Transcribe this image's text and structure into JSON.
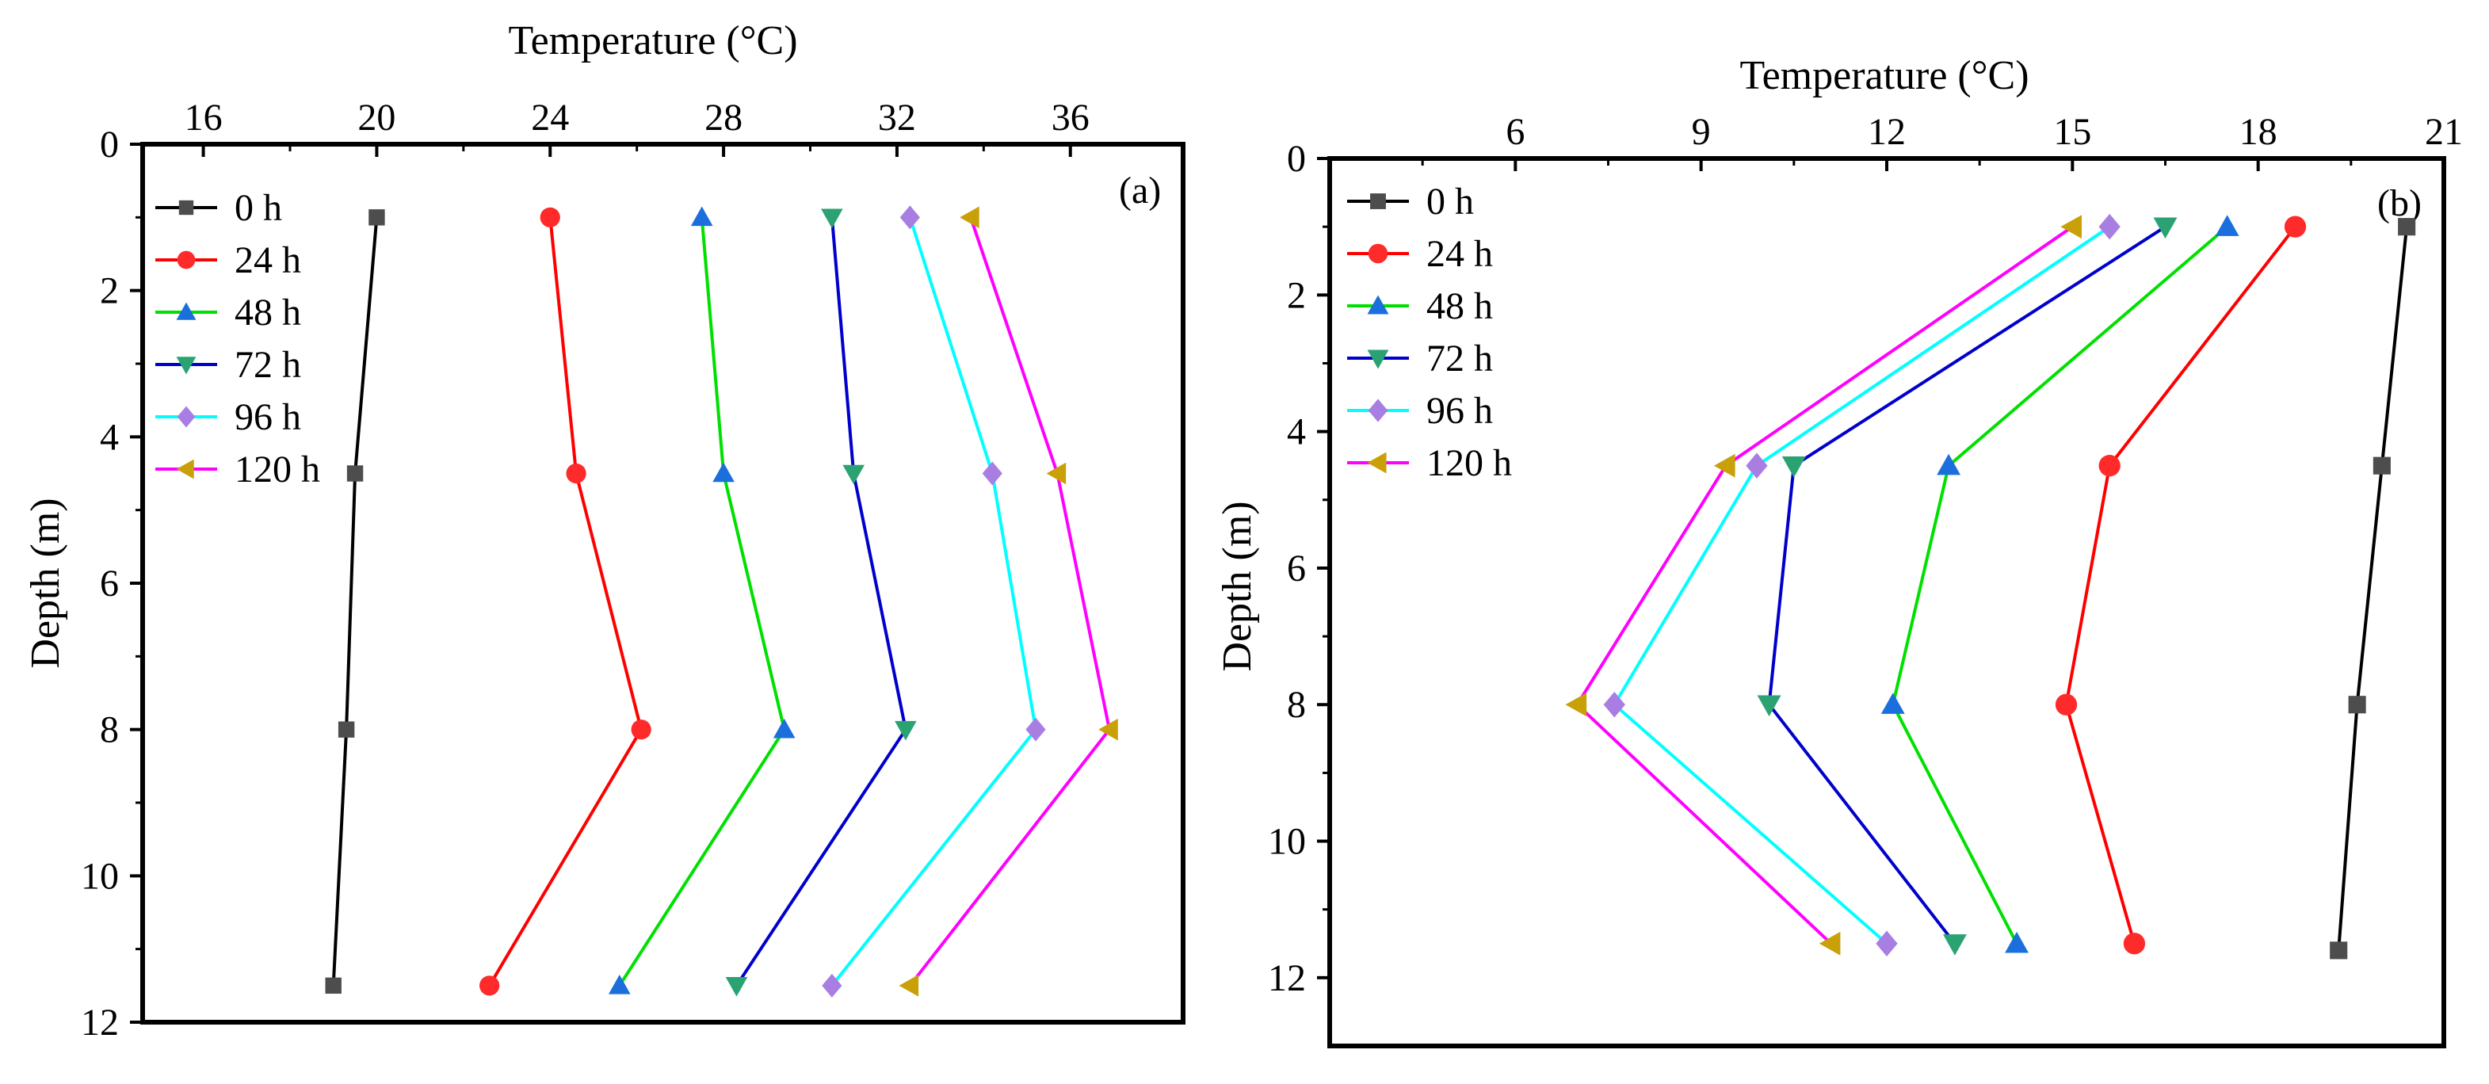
{
  "chart_data": [
    {
      "type": "line",
      "panel_label": "(a)",
      "xlabel": "Temperature (°C)",
      "ylabel": "Depth (m)",
      "xlim": [
        14.6,
        38.6
      ],
      "ylim": [
        12,
        0
      ],
      "x_ticks": [
        16,
        20,
        24,
        28,
        32,
        36
      ],
      "x_tick_labels": [
        "16",
        "20",
        "24",
        "28",
        "32",
        "36"
      ],
      "y_ticks": [
        0,
        2,
        4,
        6,
        8,
        10,
        12
      ],
      "y_tick_labels": [
        "0",
        "2",
        "4",
        "6",
        "8",
        "10",
        "12"
      ],
      "legend_position": "top-left",
      "series": [
        {
          "name": "0 h",
          "color": "#4d4d4d",
          "marker": "square",
          "points": [
            {
              "x": 20.0,
              "y": 1.0
            },
            {
              "x": 19.5,
              "y": 4.5
            },
            {
              "x": 19.3,
              "y": 8.0
            },
            {
              "x": 19.0,
              "y": 11.5
            }
          ]
        },
        {
          "name": "24 h",
          "color": "#ff2a2a",
          "marker": "circle",
          "points": [
            {
              "x": 24.0,
              "y": 1.0
            },
            {
              "x": 24.6,
              "y": 4.5
            },
            {
              "x": 26.1,
              "y": 8.0
            },
            {
              "x": 22.6,
              "y": 11.5
            }
          ]
        },
        {
          "name": "48 h",
          "color": "#1a6fdc",
          "marker": "triangle-up",
          "points": [
            {
              "x": 27.5,
              "y": 1.0
            },
            {
              "x": 28.0,
              "y": 4.5
            },
            {
              "x": 29.4,
              "y": 8.0
            },
            {
              "x": 25.6,
              "y": 11.5
            }
          ]
        },
        {
          "name": "72 h",
          "color": "#2aa272",
          "marker": "triangle-down",
          "points": [
            {
              "x": 30.5,
              "y": 1.0
            },
            {
              "x": 31.0,
              "y": 4.5
            },
            {
              "x": 32.2,
              "y": 8.0
            },
            {
              "x": 28.3,
              "y": 11.5
            }
          ]
        },
        {
          "name": "96 h",
          "color": "#a97ee3",
          "marker": "diamond",
          "points": [
            {
              "x": 32.3,
              "y": 1.0
            },
            {
              "x": 34.2,
              "y": 4.5
            },
            {
              "x": 35.2,
              "y": 8.0
            },
            {
              "x": 30.5,
              "y": 11.5
            }
          ]
        },
        {
          "name": "120 h",
          "color": "#c9a008",
          "marker": "triangle-left",
          "points": [
            {
              "x": 33.7,
              "y": 1.0
            },
            {
              "x": 35.7,
              "y": 4.5
            },
            {
              "x": 36.9,
              "y": 8.0
            },
            {
              "x": 32.3,
              "y": 11.5
            }
          ]
        }
      ],
      "line_colors": {
        "0 h": "#000000",
        "24 h": "#ff0000",
        "48 h": "#00e000",
        "72 h": "#0000cc",
        "96 h": "#00ffff",
        "120 h": "#ff00ff"
      }
    },
    {
      "type": "line",
      "panel_label": "(b)",
      "xlabel": "Temperature (°C)",
      "ylabel": "Depth (m)",
      "xlim": [
        3.0,
        21.0
      ],
      "ylim": [
        13,
        0
      ],
      "x_ticks": [
        6,
        9,
        12,
        15,
        18,
        21
      ],
      "x_tick_labels": [
        "6",
        "9",
        "12",
        "15",
        "18",
        "21"
      ],
      "y_ticks": [
        0,
        2,
        4,
        6,
        8,
        10,
        12
      ],
      "y_tick_labels": [
        "0",
        "2",
        "4",
        "6",
        "8",
        "10",
        "12"
      ],
      "legend_position": "top-left",
      "series": [
        {
          "name": "0 h",
          "color": "#4d4d4d",
          "marker": "square",
          "points": [
            {
              "x": 20.4,
              "y": 1.0
            },
            {
              "x": 20.0,
              "y": 4.5
            },
            {
              "x": 19.6,
              "y": 8.0
            },
            {
              "x": 19.3,
              "y": 11.6
            }
          ]
        },
        {
          "name": "24 h",
          "color": "#ff2a2a",
          "marker": "circle",
          "points": [
            {
              "x": 18.6,
              "y": 1.0
            },
            {
              "x": 15.6,
              "y": 4.5
            },
            {
              "x": 14.9,
              "y": 8.0
            },
            {
              "x": 16.0,
              "y": 11.5
            }
          ]
        },
        {
          "name": "48 h",
          "color": "#1a6fdc",
          "marker": "triangle-up",
          "points": [
            {
              "x": 17.5,
              "y": 1.0
            },
            {
              "x": 13.0,
              "y": 4.5
            },
            {
              "x": 12.1,
              "y": 8.0
            },
            {
              "x": 14.1,
              "y": 11.5
            }
          ]
        },
        {
          "name": "72 h",
          "color": "#2aa272",
          "marker": "triangle-down",
          "points": [
            {
              "x": 16.5,
              "y": 1.0
            },
            {
              "x": 10.5,
              "y": 4.5
            },
            {
              "x": 10.1,
              "y": 8.0
            },
            {
              "x": 13.1,
              "y": 11.5
            }
          ]
        },
        {
          "name": "96 h",
          "color": "#a97ee3",
          "marker": "diamond",
          "points": [
            {
              "x": 15.6,
              "y": 1.0
            },
            {
              "x": 9.9,
              "y": 4.5
            },
            {
              "x": 7.6,
              "y": 8.0
            },
            {
              "x": 12.0,
              "y": 11.5
            }
          ]
        },
        {
          "name": "120 h",
          "color": "#c9a008",
          "marker": "triangle-left",
          "points": [
            {
              "x": 15.0,
              "y": 1.0
            },
            {
              "x": 9.4,
              "y": 4.5
            },
            {
              "x": 7.0,
              "y": 8.0
            },
            {
              "x": 11.1,
              "y": 11.5
            }
          ]
        }
      ],
      "line_colors": {
        "0 h": "#000000",
        "24 h": "#ff0000",
        "48 h": "#00e000",
        "72 h": "#0000cc",
        "96 h": "#00ffff",
        "120 h": "#ff00ff"
      }
    }
  ]
}
